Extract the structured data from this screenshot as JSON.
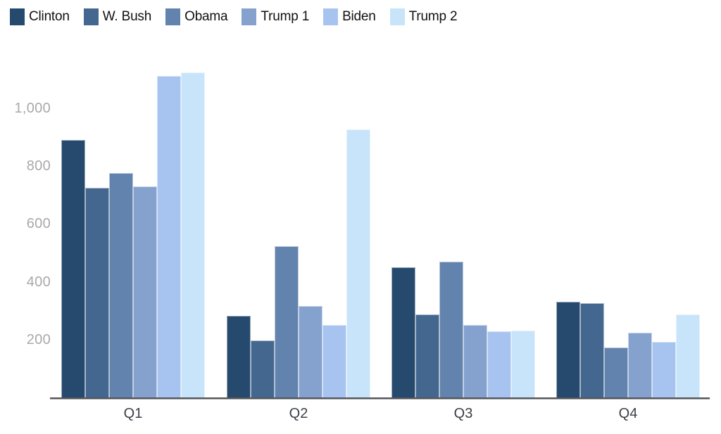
{
  "chart_data": {
    "type": "bar",
    "categories": [
      "Q1",
      "Q2",
      "Q3",
      "Q4"
    ],
    "series": [
      {
        "name": "Clinton",
        "color": "#264a6e",
        "values": [
          890,
          283,
          449,
          332
        ]
      },
      {
        "name": "W. Bush",
        "color": "#44678f",
        "values": [
          725,
          196,
          288,
          326
        ]
      },
      {
        "name": "Obama",
        "color": "#6283ae",
        "values": [
          777,
          523,
          470,
          172
        ]
      },
      {
        "name": "Trump 1",
        "color": "#85a2cf",
        "values": [
          731,
          317,
          251,
          225
        ]
      },
      {
        "name": "Biden",
        "color": "#a7c4f0",
        "values": [
          1113,
          251,
          228,
          191
        ]
      },
      {
        "name": "Trump 2",
        "color": "#c7e4fa",
        "values": [
          1124,
          928,
          232,
          287
        ]
      }
    ],
    "yticks": [
      200,
      400,
      600,
      800,
      1000
    ],
    "ytick_labels": [
      "200",
      "400",
      "600",
      "800",
      "1,000"
    ],
    "ylim": [
      0,
      1143
    ],
    "grid": false,
    "legend_position": "top-left"
  },
  "colors": {
    "axis_line": "#55565a",
    "axis_line_shadow": "#a6a6a6",
    "y_tick_label": "#a9a9a9",
    "x_tick_label": "#3b3f46",
    "legend_text": "#111111",
    "background": "#ffffff"
  }
}
